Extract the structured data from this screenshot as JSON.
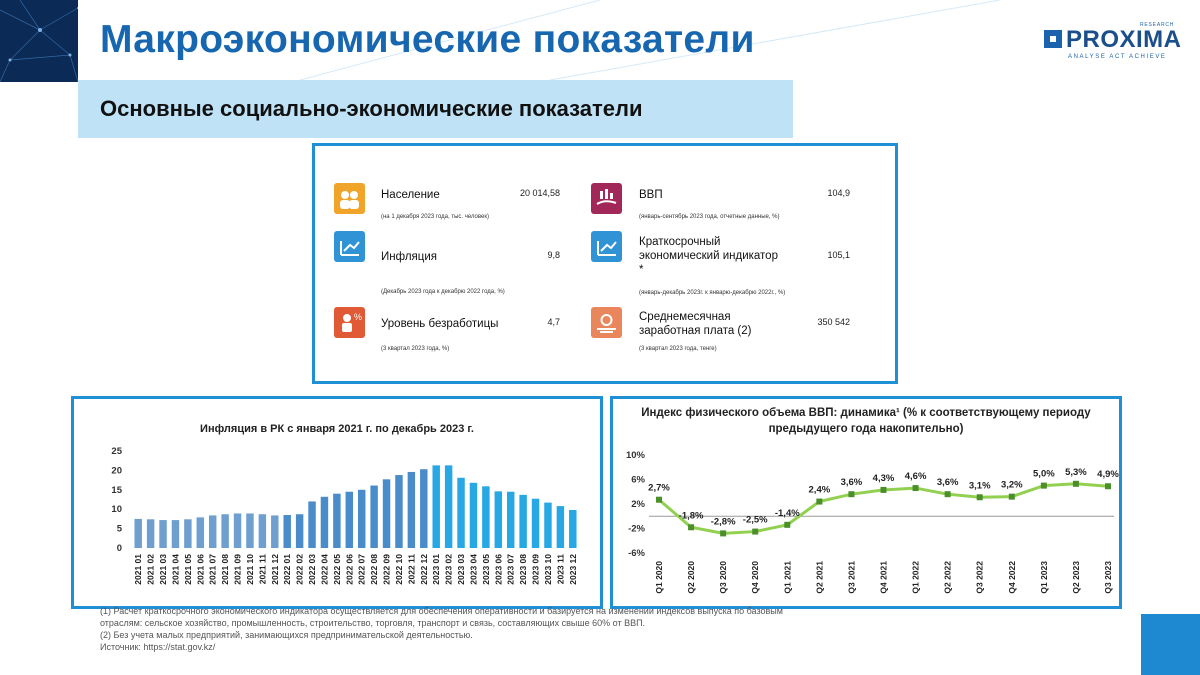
{
  "header": {
    "title": "Макроэкономические показатели",
    "subtitle": "Основные социально-экономические показатели"
  },
  "logo": {
    "word": "PROXIMA",
    "research": "RESEARCH",
    "tagline": "ANALYSE ACT ACHIEVE"
  },
  "indicators": [
    {
      "name": "Население",
      "value": "20 014,58",
      "note": "(на 1 декабря 2023 года, тыс. человек)",
      "icon": "people-icon",
      "color": "#f0a42a"
    },
    {
      "name": "Инфляция",
      "value": "9,8",
      "note": "(Декабрь 2023 года к декабрю 2022 года, %)",
      "icon": "growth-chart-icon",
      "color": "#2f93d6"
    },
    {
      "name": "Уровень безработицы",
      "value": "4,7",
      "note": "(3 квартал 2023 года, %)",
      "icon": "unemployment-icon",
      "color": "#e05a35"
    },
    {
      "name": "ВВП",
      "value": "104,9",
      "note": "(январь-сентябрь 2023 года, отчетные данные, %)",
      "icon": "gdp-hand-icon",
      "color": "#a3285a"
    },
    {
      "name": "Краткосрочный экономический индикатор *",
      "value": "105,1",
      "note": "(январь-декабрь 2023г. к январю-декабрю 2022г., %)",
      "icon": "indicator-chart-icon",
      "color": "#2f93d6"
    },
    {
      "name": "Среднемесячная заработная плата (2)",
      "value": "350 542",
      "note": "(3 квартал 2023 года, тенге)",
      "icon": "salary-icon",
      "color": "#e9865b"
    }
  ],
  "chart_data": [
    {
      "type": "bar",
      "title": "Инфляция в РК с января 2021 г. по декабрь 2023 г.",
      "categories": [
        "2021 01",
        "2021 02",
        "2021 03",
        "2021 04",
        "2021 05",
        "2021 06",
        "2021 07",
        "2021 08",
        "2021 09",
        "2021 10",
        "2021 11",
        "2021 12",
        "2022 01",
        "2022 02",
        "2022 03",
        "2022 04",
        "2022 05",
        "2022 06",
        "2022 07",
        "2022 08",
        "2022 09",
        "2022 10",
        "2022 11",
        "2022 12",
        "2023 01",
        "2023 02",
        "2023 03",
        "2023 04",
        "2023 05",
        "2023 06",
        "2023 07",
        "2023 08",
        "2023 09",
        "2023 10",
        "2023 11",
        "2023 12"
      ],
      "values": [
        7.5,
        7.4,
        7.2,
        7.2,
        7.4,
        7.9,
        8.4,
        8.7,
        8.9,
        8.9,
        8.7,
        8.4,
        8.5,
        8.7,
        12.0,
        13.2,
        14.0,
        14.5,
        15.0,
        16.1,
        17.7,
        18.8,
        19.6,
        20.3,
        21.3,
        21.3,
        18.1,
        16.8,
        15.9,
        14.6,
        14.5,
        13.7,
        12.7,
        11.7,
        10.8,
        9.8
      ],
      "colors": {
        "2021": "#6f9fcf",
        "2022": "#4a8cc9",
        "2023": "#27a7e4"
      },
      "yticks": [
        0,
        5,
        10,
        15,
        20,
        25
      ],
      "ylim": [
        0,
        25
      ]
    },
    {
      "type": "line",
      "title": "Индекс физического объема ВВП: динамика¹ (% к соответствующему периоду предыдущего года накопительно)",
      "categories": [
        "Q1 2020",
        "Q2 2020",
        "Q3 2020",
        "Q4 2020",
        "Q1 2021",
        "Q2 2021",
        "Q3 2021",
        "Q4 2021",
        "Q1 2022",
        "Q2 2022",
        "Q3 2022",
        "Q4 2022",
        "Q1 2023",
        "Q2 2023",
        "Q3 2023"
      ],
      "values": [
        2.7,
        -1.8,
        -2.8,
        -2.5,
        -1.4,
        2.4,
        3.6,
        4.3,
        4.6,
        3.6,
        3.1,
        3.2,
        5.0,
        5.3,
        4.9
      ],
      "labels": [
        "2,7%",
        "-1,8%",
        "-2,8%",
        "-2,5%",
        "-1,4%",
        "2,4%",
        "3,6%",
        "4,3%",
        "4,6%",
        "3,6%",
        "3,1%",
        "3,2%",
        "5,0%",
        "5,3%",
        "4,9%"
      ],
      "yticks": [
        "10%",
        "6%",
        "2%",
        "-2%",
        "-6%"
      ],
      "ylim": [
        -6,
        10
      ],
      "line_color": "#92d050",
      "marker_color": "#4a8f2a"
    }
  ],
  "footnotes": {
    "line1": "(1) Расчет краткосрочного экономического индикатора осуществляется для обеспечения оперативности и базируется на изменении индексов выпуска по базовым",
    "line2": "отраслям: сельское хозяйство, промышленность, строительство, торговля, транспорт и связь, составляющих свыше 60% от ВВП.",
    "line3": "(2) Без учета малых предприятий, занимающихся предпринимательской деятельностью.",
    "source": "Источник: https://stat.gov.kz/"
  }
}
